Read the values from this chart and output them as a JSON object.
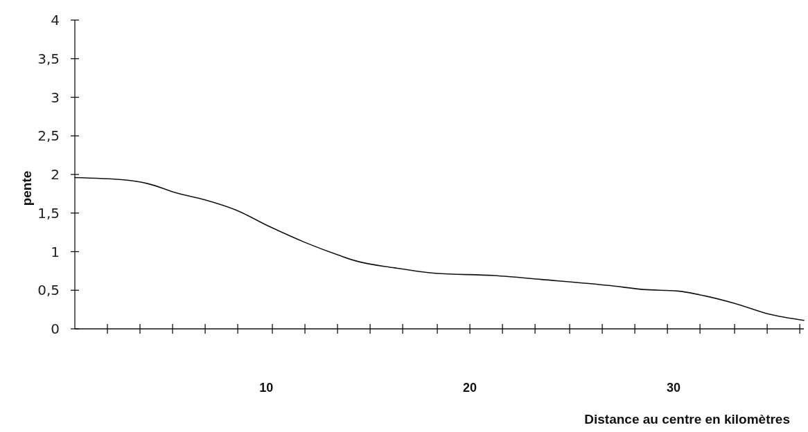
{
  "chart_data": {
    "type": "line",
    "xlabel": "Distance au centre en kilomètres",
    "ylabel": "pente",
    "x": [
      0.6,
      3.0,
      4.2,
      5.6,
      7.0,
      8.5,
      10.2,
      11.9,
      13.6,
      14.4,
      16.3,
      18.3,
      21.2,
      23.5,
      26.9,
      28.5,
      30.2,
      31.3,
      33.0,
      34.7,
      36.4
    ],
    "series": [
      {
        "color": "#111111",
        "values": [
          1.96,
          1.93,
          1.88,
          1.76,
          1.67,
          1.54,
          1.32,
          1.12,
          0.95,
          0.88,
          0.79,
          0.72,
          0.69,
          0.64,
          0.56,
          0.51,
          0.49,
          0.44,
          0.33,
          0.19,
          0.11
        ]
      }
    ],
    "xlim": [
      0.6,
      36.4
    ],
    "xticks": [
      {
        "value": 2.2,
        "label": null
      },
      {
        "value": 3.8,
        "label": null
      },
      {
        "value": 5.4,
        "label": null
      },
      {
        "value": 7.0,
        "label": null
      },
      {
        "value": 8.6,
        "label": null
      },
      {
        "value": 10,
        "label": "10"
      },
      {
        "value": 10.3,
        "label": null
      },
      {
        "value": 11.9,
        "label": null
      },
      {
        "value": 13.5,
        "label": null
      },
      {
        "value": 15.1,
        "label": null
      },
      {
        "value": 16.7,
        "label": null
      },
      {
        "value": 18.4,
        "label": null
      },
      {
        "value": 20,
        "label": "20"
      },
      {
        "value": 20.0,
        "label": null
      },
      {
        "value": 21.6,
        "label": null
      },
      {
        "value": 23.2,
        "label": null
      },
      {
        "value": 24.9,
        "label": null
      },
      {
        "value": 26.5,
        "label": null
      },
      {
        "value": 28.1,
        "label": null
      },
      {
        "value": 29.7,
        "label": null
      },
      {
        "value": 30,
        "label": "30"
      },
      {
        "value": 31.3,
        "label": null
      },
      {
        "value": 33.0,
        "label": null
      },
      {
        "value": 34.6,
        "label": null
      },
      {
        "value": 36.2,
        "label": null
      }
    ],
    "ylim": [
      0,
      4
    ],
    "yticks": [
      0,
      {
        "value": 0.5,
        "label": "0,5"
      },
      1,
      {
        "value": 1.5,
        "label": "1,5"
      },
      2,
      {
        "value": 2.5,
        "label": "2,5"
      },
      3,
      {
        "value": 3.5,
        "label": "3,5"
      },
      4
    ],
    "grid": false,
    "marker": "none",
    "line_style": "solid"
  }
}
